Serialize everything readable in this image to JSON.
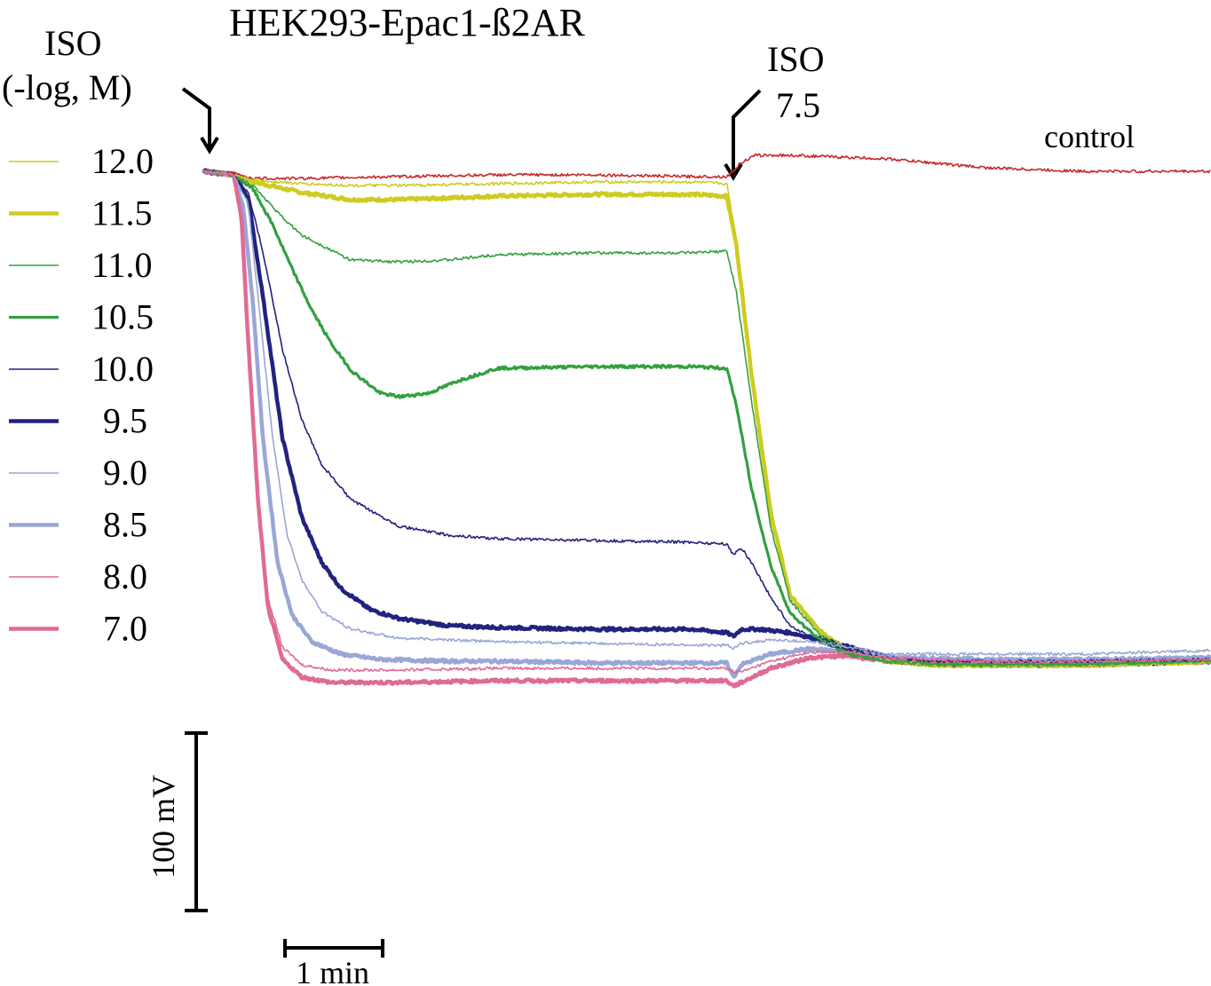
{
  "chart_data": {
    "type": "line",
    "title": "HEK293-Epac1-ß2AR",
    "first_addition": {
      "label_line1": "ISO",
      "label_line2": "(-log, M)"
    },
    "second_addition": {
      "label_line1": "ISO",
      "label_line2": "7.5",
      "time_min": 5.4
    },
    "control_label": "control",
    "scale_bar_y": {
      "label": "100 mV",
      "value_mV": 100
    },
    "scale_bar_x": {
      "label": "1 min",
      "value_min": 1
    },
    "x_range_min": [
      0,
      10.3
    ],
    "y_range_mV": [
      -290,
      35
    ],
    "series": [
      {
        "name": "control",
        "legend": false,
        "color": "#c8282a",
        "width": 1.6,
        "t": [
          0,
          0.3,
          0.5,
          1,
          2,
          3,
          4,
          5,
          5.35,
          5.4,
          5.5,
          5.65,
          6,
          7,
          8,
          9,
          10.3
        ],
        "v": [
          0,
          -1,
          -4,
          -4,
          -3,
          -2,
          -2,
          -3,
          -3,
          -1,
          5,
          9,
          9,
          7,
          2,
          0,
          0
        ]
      },
      {
        "name": "12.0",
        "legend": true,
        "color": "#cccc22",
        "width": 1.6,
        "t": [
          0,
          0.3,
          0.5,
          1,
          1.5,
          2,
          3,
          4,
          5,
          5.35,
          5.45,
          5.6,
          5.8,
          6.0,
          6.3,
          6.6,
          7,
          7.5,
          8,
          9,
          10.3
        ],
        "v": [
          0,
          -2,
          -5,
          -7,
          -8,
          -8,
          -7,
          -6,
          -6,
          -7,
          -38,
          -110,
          -190,
          -238,
          -258,
          -270,
          -276,
          -279,
          -279,
          -279,
          -277
        ]
      },
      {
        "name": "11.5",
        "legend": true,
        "color": "#cccc22",
        "width": 4.5,
        "t": [
          0,
          0.3,
          0.5,
          1,
          1.5,
          2,
          3,
          4,
          5,
          5.35,
          5.45,
          5.6,
          5.8,
          6.0,
          6.3,
          6.6,
          7,
          7.5,
          8,
          9,
          10.3
        ],
        "v": [
          0,
          -2,
          -6,
          -12,
          -16,
          -16,
          -14,
          -13,
          -13,
          -14,
          -42,
          -112,
          -192,
          -239,
          -259,
          -270,
          -276,
          -278,
          -278,
          -278,
          -276
        ]
      },
      {
        "name": "11.0",
        "legend": true,
        "color": "#33a040",
        "width": 1.6,
        "t": [
          0,
          0.3,
          0.5,
          0.8,
          1,
          1.5,
          2,
          2.5,
          3,
          4,
          5,
          5.35,
          5.45,
          5.6,
          5.8,
          6.0,
          6.3,
          6.6,
          7,
          7.5,
          8,
          9,
          10.3
        ],
        "v": [
          0,
          -2,
          -8,
          -26,
          -36,
          -50,
          -51,
          -50,
          -47,
          -46,
          -46,
          -45,
          -68,
          -128,
          -200,
          -242,
          -261,
          -271,
          -276,
          -278,
          -278,
          -278,
          -276
        ]
      },
      {
        "name": "10.5",
        "legend": true,
        "color": "#33a040",
        "width": 3.2,
        "t": [
          0,
          0.3,
          0.5,
          0.7,
          0.9,
          1.1,
          1.3,
          1.5,
          1.8,
          2,
          2.3,
          2.6,
          3,
          4,
          5,
          5.35,
          5.45,
          5.6,
          5.8,
          6.0,
          6.3,
          6.6,
          7,
          7.5,
          8,
          9,
          10.3
        ],
        "v": [
          0,
          -2,
          -10,
          -30,
          -55,
          -78,
          -97,
          -112,
          -125,
          -127,
          -125,
          -118,
          -111,
          -110,
          -110,
          -111,
          -132,
          -178,
          -222,
          -249,
          -264,
          -272,
          -276,
          -278,
          -278,
          -278,
          -276
        ]
      },
      {
        "name": "10.0",
        "legend": true,
        "color": "#22227f",
        "width": 1.6,
        "t": [
          0,
          0.3,
          0.45,
          0.6,
          0.8,
          1,
          1.2,
          1.5,
          2,
          2.5,
          3,
          4,
          5,
          5.35,
          5.42,
          5.5,
          5.6,
          5.8,
          6.0,
          6.3,
          6.6,
          7,
          7.5,
          8,
          9,
          10.3
        ],
        "v": [
          0,
          -2,
          -12,
          -45,
          -100,
          -140,
          -165,
          -185,
          -200,
          -205,
          -207,
          -208,
          -209,
          -210,
          -216,
          -212,
          -220,
          -240,
          -256,
          -265,
          -270,
          -274,
          -276,
          -276,
          -276,
          -275
        ]
      },
      {
        "name": "9.5",
        "legend": true,
        "color": "#22227f",
        "width": 4.5,
        "t": [
          0,
          0.3,
          0.45,
          0.6,
          0.8,
          1,
          1.2,
          1.4,
          1.7,
          2,
          2.5,
          3,
          4,
          5,
          5.35,
          5.42,
          5.5,
          5.7,
          6.0,
          6.4,
          6.8,
          7.2,
          7.6,
          8,
          9,
          10.3
        ],
        "v": [
          0,
          -2,
          -15,
          -70,
          -150,
          -195,
          -220,
          -235,
          -247,
          -252,
          -256,
          -257,
          -258,
          -258,
          -260,
          -262,
          -258,
          -258,
          -260,
          -265,
          -271,
          -276,
          -278,
          -278,
          -278,
          -276
        ]
      },
      {
        "name": "9.0",
        "legend": true,
        "color": "#9aa6d6",
        "width": 1.6,
        "t": [
          0,
          0.3,
          0.45,
          0.55,
          0.7,
          0.85,
          1,
          1.2,
          1.5,
          2,
          3,
          4,
          5,
          5.35,
          5.42,
          5.5,
          5.8,
          6.2,
          6.6,
          7,
          8,
          9,
          10.3
        ],
        "v": [
          0,
          -2,
          -18,
          -70,
          -150,
          -205,
          -230,
          -248,
          -258,
          -263,
          -265,
          -266,
          -267,
          -267,
          -269,
          -266,
          -264,
          -265,
          -268,
          -272,
          -272,
          -272,
          -270
        ]
      },
      {
        "name": "8.5",
        "legend": true,
        "color": "#9aa6d6",
        "width": 4.5,
        "t": [
          0,
          0.3,
          0.4,
          0.5,
          0.6,
          0.75,
          0.9,
          1.1,
          1.4,
          1.8,
          2.5,
          3,
          4,
          5,
          5.35,
          5.42,
          5.5,
          5.8,
          6.2,
          6.6,
          7,
          8,
          9,
          10.3
        ],
        "v": [
          0,
          -2,
          -20,
          -75,
          -150,
          -220,
          -250,
          -265,
          -272,
          -275,
          -276,
          -276,
          -277,
          -277,
          -277,
          -285,
          -278,
          -272,
          -269,
          -271,
          -274,
          -275,
          -275,
          -274
        ]
      },
      {
        "name": "8.0",
        "legend": true,
        "color": "#e06a96",
        "width": 1.6,
        "t": [
          0,
          0.3,
          0.38,
          0.45,
          0.55,
          0.65,
          0.8,
          1,
          1.3,
          2,
          3,
          4,
          5,
          5.35,
          5.42,
          5.5,
          5.8,
          6.2,
          6.6,
          7,
          8,
          9,
          10.3
        ],
        "v": [
          0,
          -2,
          -25,
          -90,
          -180,
          -240,
          -268,
          -278,
          -281,
          -281,
          -280,
          -280,
          -280,
          -280,
          -282,
          -282,
          -276,
          -271,
          -271,
          -274,
          -276,
          -276,
          -275
        ]
      },
      {
        "name": "7.0",
        "legend": true,
        "color": "#e06a96",
        "width": 4.5,
        "t": [
          0,
          0.3,
          0.38,
          0.45,
          0.55,
          0.65,
          0.8,
          1,
          1.3,
          2,
          3,
          4,
          5,
          5.35,
          5.42,
          5.5,
          5.8,
          6.2,
          6.6,
          7,
          8,
          9,
          10.3
        ],
        "v": [
          0,
          -2,
          -25,
          -95,
          -185,
          -245,
          -275,
          -285,
          -288,
          -288,
          -287,
          -287,
          -287,
          -287,
          -290,
          -288,
          -280,
          -274,
          -273,
          -276,
          -278,
          -278,
          -276
        ]
      }
    ]
  }
}
